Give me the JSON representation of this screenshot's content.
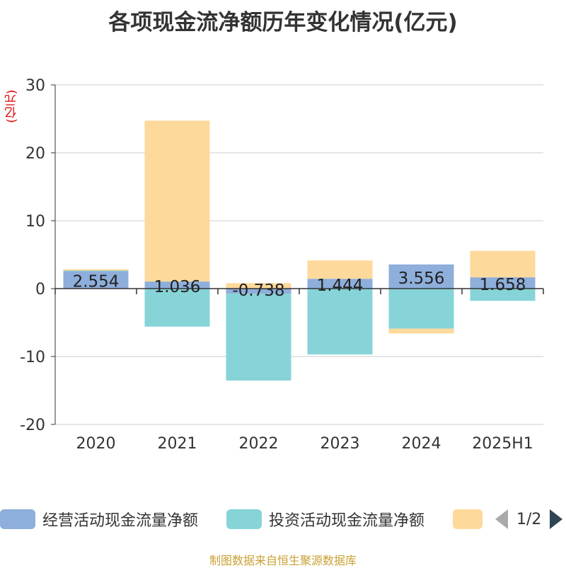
{
  "chart_data": {
    "type": "bar",
    "stacked": true,
    "title": "各项现金流净额历年变化情况(亿元)",
    "ylabel": "(亿元)",
    "ylim": [
      -20,
      30
    ],
    "yticks": [
      30,
      20,
      10,
      0,
      -10,
      -20
    ],
    "grid": true,
    "categories": [
      "2020",
      "2021",
      "2022",
      "2023",
      "2024",
      "2025H1"
    ],
    "series": [
      {
        "name": "经营活动现金流量净额",
        "color": "#8eaedb",
        "values": [
          2.554,
          1.036,
          -0.738,
          1.444,
          3.556,
          1.658
        ],
        "labels": [
          "2.554",
          "1.036",
          "-0.738",
          "1.444",
          "3.556",
          "1.658"
        ]
      },
      {
        "name": "投资活动现金流量净额",
        "color": "#86d4d8",
        "values": [
          0.1,
          -5.6,
          -12.8,
          -9.7,
          -5.9,
          -1.8
        ]
      },
      {
        "name": "",
        "color": "#fdd99b",
        "values": [
          0.2,
          23.7,
          0.8,
          2.7,
          -0.7,
          3.9
        ]
      }
    ],
    "legend": {
      "position": "bottom",
      "page": "1/2"
    }
  },
  "footer": "制图数据来自恒生聚源数据库"
}
